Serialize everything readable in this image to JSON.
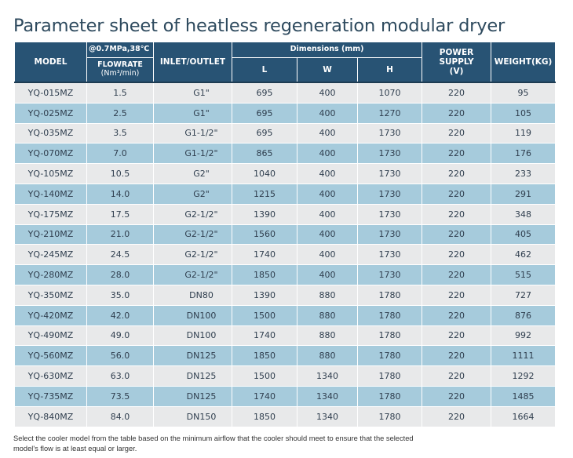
{
  "title": "Parameter sheet of heatless regeneration modular dryer",
  "table": {
    "headers": {
      "model": "MODEL",
      "condition": "@0.7MPa,38℃",
      "flowrate": "FLOWRATE",
      "flowrate_unit": "(Nm³/min)",
      "inlet_outlet": "INLET/OUTLET",
      "dimensions": "Dimensions (mm)",
      "l": "L",
      "w": "W",
      "h": "H",
      "power_supply": "POWER SUPPLY",
      "power_unit": "(V)",
      "weight": "WEIGHT(KG)"
    },
    "rows": [
      [
        "YQ-015MZ",
        "1.5",
        "G1\"",
        "695",
        "400",
        "1070",
        "220",
        "95"
      ],
      [
        "YQ-025MZ",
        "2.5",
        "G1\"",
        "695",
        "400",
        "1270",
        "220",
        "105"
      ],
      [
        "YQ-035MZ",
        "3.5",
        "G1-1/2\"",
        "695",
        "400",
        "1730",
        "220",
        "119"
      ],
      [
        "YQ-070MZ",
        "7.0",
        "G1-1/2\"",
        "865",
        "400",
        "1730",
        "220",
        "176"
      ],
      [
        "YQ-105MZ",
        "10.5",
        "G2\"",
        "1040",
        "400",
        "1730",
        "220",
        "233"
      ],
      [
        "YQ-140MZ",
        "14.0",
        "G2\"",
        "1215",
        "400",
        "1730",
        "220",
        "291"
      ],
      [
        "YQ-175MZ",
        "17.5",
        "G2-1/2\"",
        "1390",
        "400",
        "1730",
        "220",
        "348"
      ],
      [
        "YQ-210MZ",
        "21.0",
        "G2-1/2\"",
        "1560",
        "400",
        "1730",
        "220",
        "405"
      ],
      [
        "YQ-245MZ",
        "24.5",
        "G2-1/2\"",
        "1740",
        "400",
        "1730",
        "220",
        "462"
      ],
      [
        "YQ-280MZ",
        "28.0",
        "G2-1/2\"",
        "1850",
        "400",
        "1730",
        "220",
        "515"
      ],
      [
        "YQ-350MZ",
        "35.0",
        "DN80",
        "1390",
        "880",
        "1780",
        "220",
        "727"
      ],
      [
        "YQ-420MZ",
        "42.0",
        "DN100",
        "1500",
        "880",
        "1780",
        "220",
        "876"
      ],
      [
        "YQ-490MZ",
        "49.0",
        "DN100",
        "1740",
        "880",
        "1780",
        "220",
        "992"
      ],
      [
        "YQ-560MZ",
        "56.0",
        "DN125",
        "1850",
        "880",
        "1780",
        "220",
        "1111"
      ],
      [
        "YQ-630MZ",
        "63.0",
        "DN125",
        "1500",
        "1340",
        "1780",
        "220",
        "1292"
      ],
      [
        "YQ-735MZ",
        "73.5",
        "DN125",
        "1740",
        "1340",
        "1780",
        "220",
        "1485"
      ],
      [
        "YQ-840MZ",
        "84.0",
        "DN150",
        "1850",
        "1340",
        "1780",
        "220",
        "1664"
      ]
    ]
  },
  "note": "Select the cooler model from the table based on the minimum airflow that the cooler should meet to ensure that the selected model's flow is at least equal or larger.",
  "colors": {
    "header_bg": "#285374",
    "row_light": "#e8e9ea",
    "row_blue": "#a6cbdc",
    "title": "#2e4a5e"
  }
}
